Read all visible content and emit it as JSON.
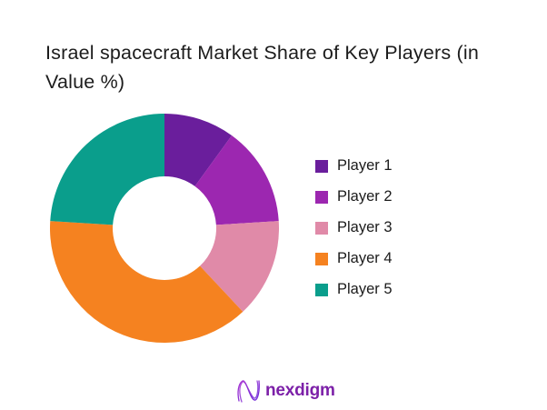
{
  "title": {
    "text": "Israel spacecraft Market Share of Key Players (in Value %)",
    "line1": "Israel spacecraft Market Share of Key Players (in",
    "line2": "Value %)"
  },
  "chart_data": {
    "type": "pie",
    "subtype": "donut",
    "title": "Israel spacecraft Market Share of Key Players (in Value %)",
    "categories": [
      "Player 1",
      "Player 2",
      "Player 3",
      "Player 4",
      "Player 5"
    ],
    "values": [
      10,
      14,
      14,
      38,
      24
    ],
    "unit": "percent_of_value_share",
    "colors": [
      "#6A1E9C",
      "#9C27B0",
      "#E08AA8",
      "#F58220",
      "#0A9E8C"
    ],
    "start_angle_deg": 0,
    "direction": "clockwise",
    "inner_radius_ratio": 0.45,
    "legend_position": "right",
    "data_labels_shown": false
  },
  "footer": {
    "brand": "nexdigm",
    "brand_color": "#7C20A8",
    "icon_gradient_start": "#A833D1",
    "icon_gradient_end": "#6C2BD9"
  }
}
